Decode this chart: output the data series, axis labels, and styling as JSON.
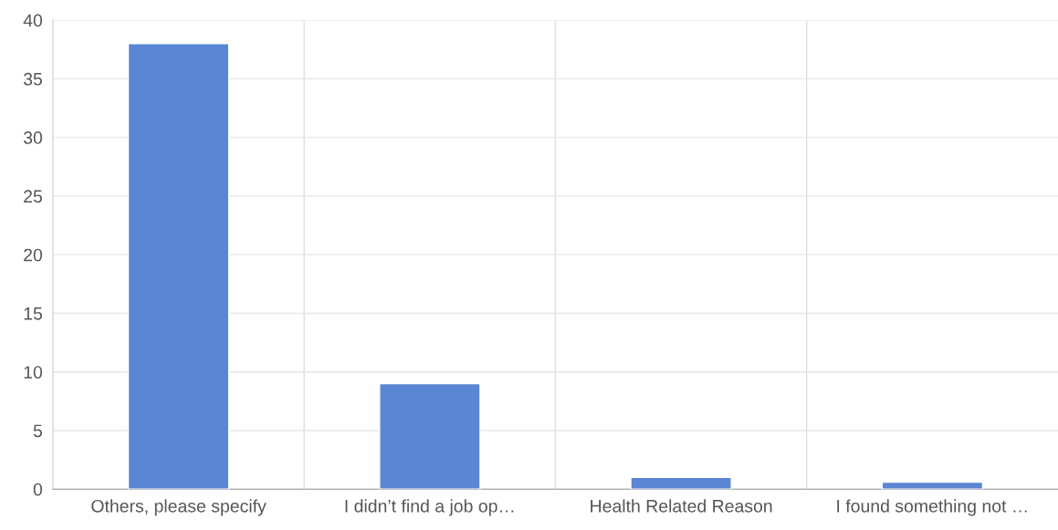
{
  "chart_data": {
    "type": "bar",
    "categories": [
      "Others, please specify",
      "I didn’t find a job op…",
      "Health Related Reason",
      "I found something not …"
    ],
    "values": [
      38,
      9,
      1,
      0.6
    ],
    "color": "#5a86d3",
    "ylim": [
      0,
      40
    ],
    "yticks": [
      0,
      5,
      10,
      15,
      20,
      25,
      30,
      35,
      40
    ],
    "grid": true
  }
}
